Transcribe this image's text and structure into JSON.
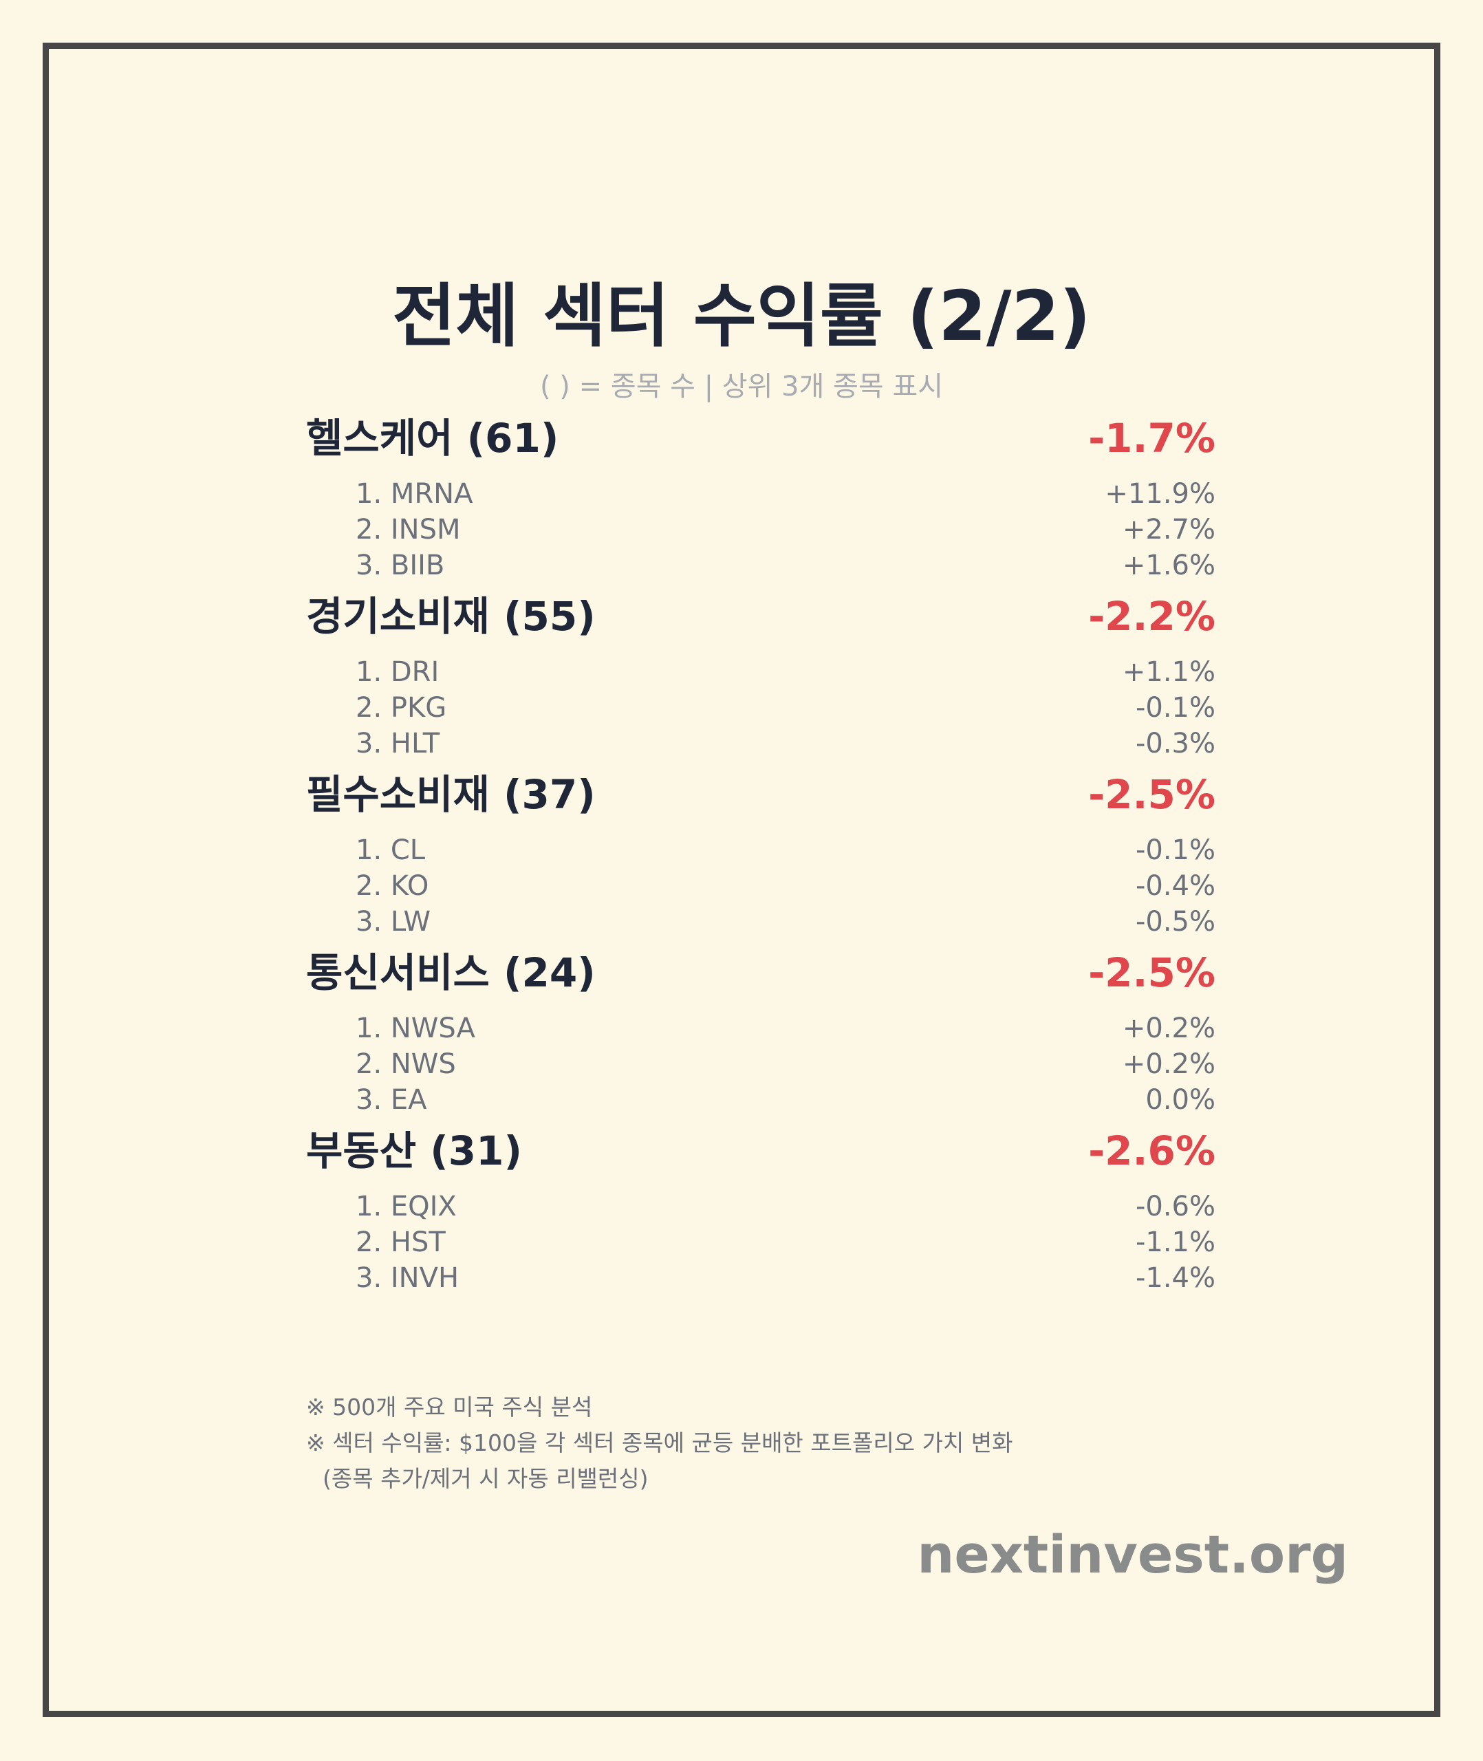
{
  "title": "전체 섹터 수익률 (2/2)",
  "subtitle": "( ) = 종목 수 | 상위 3개 종목 표시",
  "colors": {
    "background": "#fdf8e6",
    "frame": "#474747",
    "heading": "#1e2638",
    "negative": "#e0474c",
    "muted": "#6b707a",
    "brand": "#8a8c8c"
  },
  "sectors": [
    {
      "name": "헬스케어 (61)",
      "return": "-1.7%",
      "stocks": [
        {
          "name": "1. MRNA",
          "return": "+11.9%"
        },
        {
          "name": "2. INSM",
          "return": "+2.7%"
        },
        {
          "name": "3. BIIB",
          "return": "+1.6%"
        }
      ]
    },
    {
      "name": "경기소비재 (55)",
      "return": "-2.2%",
      "stocks": [
        {
          "name": "1. DRI",
          "return": "+1.1%"
        },
        {
          "name": "2. PKG",
          "return": "-0.1%"
        },
        {
          "name": "3. HLT",
          "return": "-0.3%"
        }
      ]
    },
    {
      "name": "필수소비재 (37)",
      "return": "-2.5%",
      "stocks": [
        {
          "name": "1. CL",
          "return": "-0.1%"
        },
        {
          "name": "2. KO",
          "return": "-0.4%"
        },
        {
          "name": "3. LW",
          "return": "-0.5%"
        }
      ]
    },
    {
      "name": "통신서비스 (24)",
      "return": "-2.5%",
      "stocks": [
        {
          "name": "1. NWSA",
          "return": "+0.2%"
        },
        {
          "name": "2. NWS",
          "return": "+0.2%"
        },
        {
          "name": "3. EA",
          "return": "0.0%"
        }
      ]
    },
    {
      "name": "부동산 (31)",
      "return": "-2.6%",
      "stocks": [
        {
          "name": "1. EQIX",
          "return": "-0.6%"
        },
        {
          "name": "2. HST",
          "return": "-1.1%"
        },
        {
          "name": "3. INVH",
          "return": "-1.4%"
        }
      ]
    }
  ],
  "notes": [
    "※ 500개 주요 미국 주식 분석",
    "※ 섹터 수익률: $100을 각 섹터 종목에 균등 분배한 포트폴리오 가치 변화",
    "(종목 추가/제거 시 자동 리밸런싱)"
  ],
  "brand": "nextinvest.org"
}
